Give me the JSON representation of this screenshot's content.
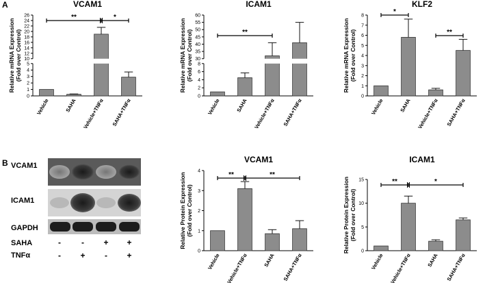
{
  "panels": {
    "a": "A",
    "b": "B"
  },
  "western_blot": {
    "rows": [
      "VCAM1",
      "ICAM1",
      "GAPDH"
    ],
    "treatments": [
      {
        "label": "SAHA",
        "signs": [
          "-",
          "-",
          "+",
          "+"
        ]
      },
      {
        "label": "TNFα",
        "signs": [
          "-",
          "+",
          "-",
          "+"
        ]
      }
    ]
  },
  "chart_data": [
    {
      "type": "bar",
      "title": "VCAM1",
      "ylabel": "Relative mRNA Expression (Fold over Control)",
      "categories": [
        "Vehicle",
        "SAHA",
        "Vehicle+TNFα",
        "SAHA+TNFα"
      ],
      "values": [
        1.0,
        0.25,
        19.0,
        2.9
      ],
      "errors": [
        0,
        0.05,
        2.5,
        0.8
      ],
      "axis_break": [
        5,
        10
      ],
      "yticks_lower": [
        "0",
        "1",
        "2",
        "3",
        "4",
        "5"
      ],
      "yticks_upper": [
        "10",
        "12",
        "14",
        "16",
        "18",
        "20",
        "22",
        "24",
        "26"
      ],
      "ylim": [
        0,
        26
      ],
      "significance": [
        "**",
        "*"
      ]
    },
    {
      "type": "bar",
      "title": "ICAM1",
      "ylabel": "Relative mRNA Expression (Fold over Control)",
      "categories": [
        "Vehicle",
        "SAHA",
        "Vehicle+TNFα",
        "SAHA+TNFα"
      ],
      "values": [
        1.0,
        4.5,
        32,
        41
      ],
      "errors": [
        0,
        1.2,
        9,
        14
      ],
      "axis_break": [
        8,
        30
      ],
      "yticks_lower": [
        "0",
        "2",
        "4",
        "6",
        "8"
      ],
      "yticks_upper": [
        "30",
        "35",
        "40",
        "45",
        "50",
        "55",
        "60"
      ],
      "ylim": [
        0,
        60
      ],
      "significance": [
        "**"
      ]
    },
    {
      "type": "bar",
      "title": "KLF2",
      "ylabel": "Relative mRNA Expression (Fold over Control)",
      "categories": [
        "Vehicle",
        "SAHA",
        "Vehicle+TNFα",
        "SAHA+TNFα"
      ],
      "values": [
        1.0,
        5.8,
        0.6,
        4.5
      ],
      "errors": [
        0,
        1.8,
        0.15,
        1.1
      ],
      "yticks": [
        "0",
        "1",
        "2",
        "3",
        "4",
        "5",
        "6",
        "7",
        "8"
      ],
      "ylim": [
        0,
        8
      ],
      "significance": [
        "*",
        "**"
      ]
    },
    {
      "type": "bar",
      "title": "VCAM1",
      "ylabel": "Relative Protein Expression (Fold over Control)",
      "categories": [
        "Vehicle",
        "Vehicle+TNFα",
        "SAHA",
        "SAHA+TNFα"
      ],
      "values": [
        1.0,
        3.1,
        0.85,
        1.1
      ],
      "errors": [
        0,
        0.35,
        0.2,
        0.4
      ],
      "yticks": [
        "0",
        "1",
        "2",
        "3",
        "4"
      ],
      "ylim": [
        0,
        4
      ],
      "significance": [
        "**",
        "**"
      ]
    },
    {
      "type": "bar",
      "title": "ICAM1",
      "ylabel": "Relative Protein Expression (Fold over Control)",
      "categories": [
        "Vehicle",
        "Vehicle+TNFα",
        "SAHA",
        "SAHA+TNFα"
      ],
      "values": [
        1.0,
        10.0,
        2.0,
        6.5
      ],
      "errors": [
        0,
        1.5,
        0.3,
        0.4
      ],
      "yticks": [
        "0",
        "5",
        "10",
        "15"
      ],
      "ylim": [
        0,
        15
      ],
      "significance": [
        "**",
        "*"
      ]
    }
  ]
}
